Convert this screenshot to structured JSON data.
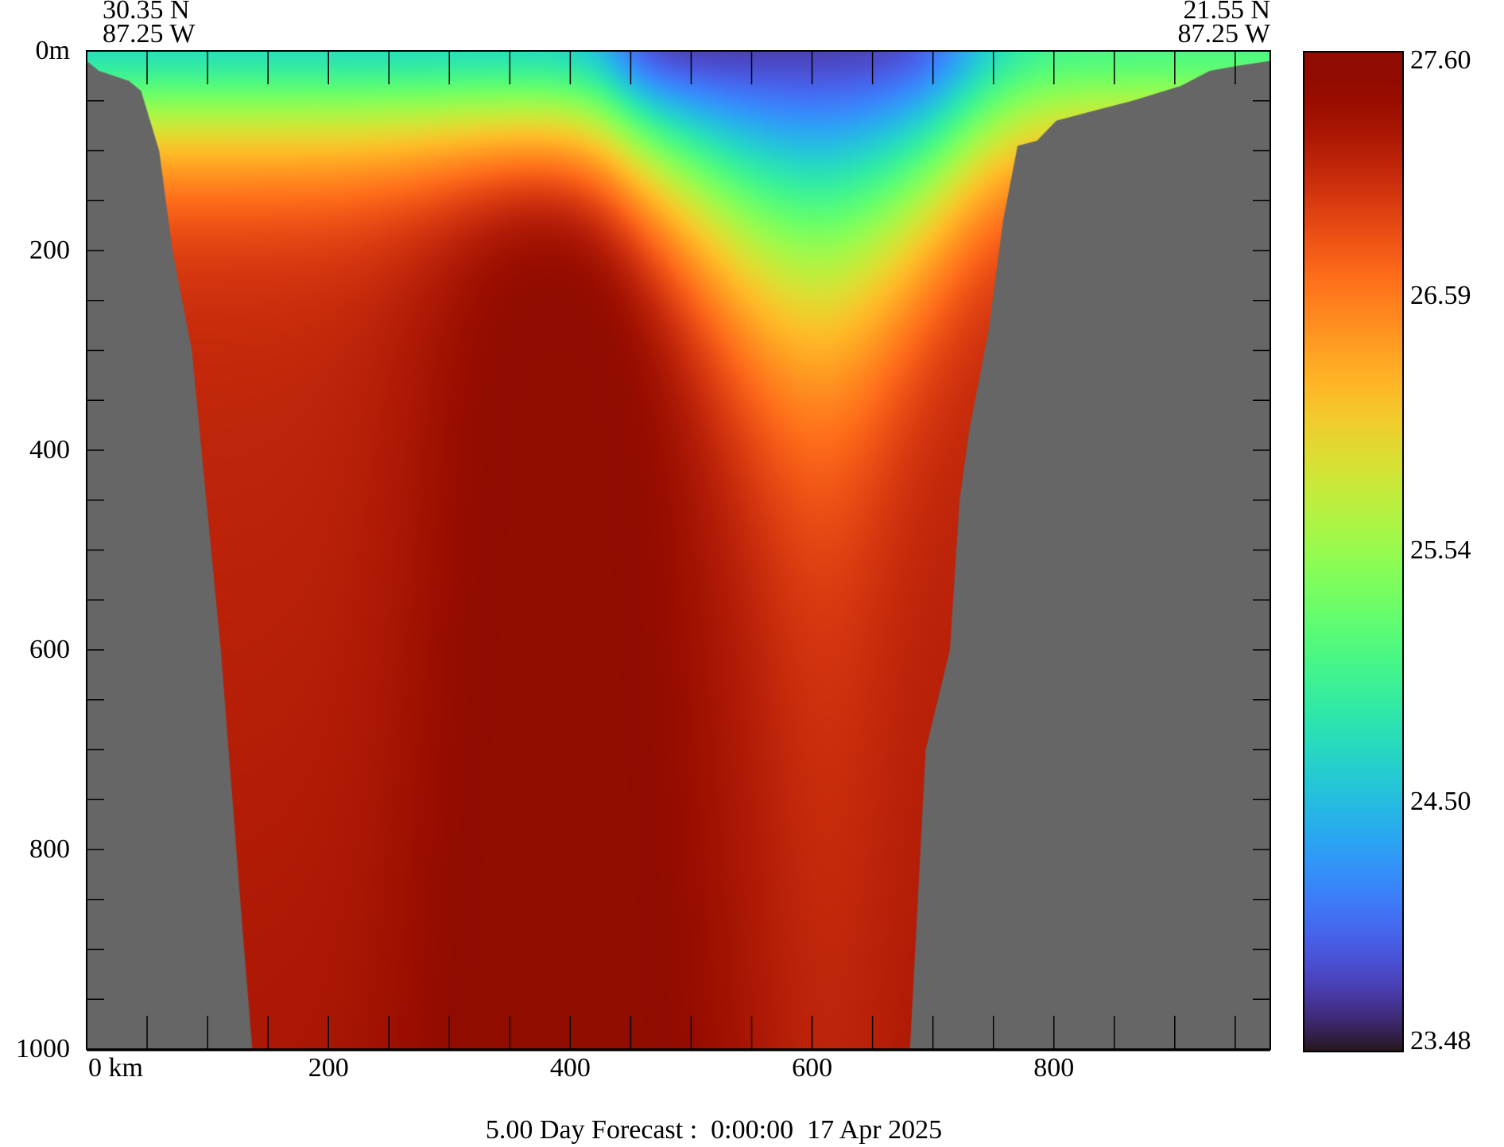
{
  "chart_data": {
    "type": "heatmap",
    "title": "5.00 Day Forecast :  0:00:00  17 Apr 2025",
    "start_point": {
      "lat": "30.35 N",
      "lon": "87.25 W"
    },
    "end_point": {
      "lat": "21.55 N",
      "lon": "87.25 W"
    },
    "xlabel": "km",
    "ylabel": "m",
    "xlim": [
      0,
      979
    ],
    "ylim": [
      1000,
      0
    ],
    "x_ticks": [
      {
        "value": 0,
        "label": "0 km"
      },
      {
        "value": 200,
        "label": "200"
      },
      {
        "value": 400,
        "label": "400"
      },
      {
        "value": 600,
        "label": "600"
      },
      {
        "value": 800,
        "label": "800"
      }
    ],
    "y_ticks": [
      {
        "value": 0,
        "label": "0m"
      },
      {
        "value": 200,
        "label": "200"
      },
      {
        "value": 400,
        "label": "400"
      },
      {
        "value": 600,
        "label": "600"
      },
      {
        "value": 800,
        "label": "800"
      },
      {
        "value": 1000,
        "label": "1000"
      }
    ],
    "minor_tick_step_x": 50,
    "minor_tick_step_y": 50,
    "colorbar": {
      "min": 23.48,
      "max": 27.6,
      "colormap": "turbo",
      "labels": [
        "27.60",
        "26.59",
        "25.54",
        "24.50",
        "23.48"
      ],
      "label_values": [
        27.6,
        26.59,
        25.54,
        24.5,
        23.48
      ]
    },
    "land_color": "#666666",
    "seafloor_left": {
      "km": [
        0,
        10,
        35,
        45,
        60,
        71,
        87,
        99,
        111,
        127,
        137
      ],
      "depth": [
        10,
        20,
        30,
        40,
        100,
        200,
        300,
        450,
        600,
        850,
        1000
      ]
    },
    "seafloor_right": {
      "km": [
        681,
        694,
        714,
        722,
        730,
        746,
        758,
        770,
        786,
        802,
        833,
        865,
        905,
        929,
        952,
        979
      ],
      "depth": [
        1000,
        700,
        600,
        450,
        380,
        280,
        170,
        95,
        90,
        70,
        60,
        50,
        35,
        20,
        15,
        10
      ]
    },
    "field_description_values": {
      "surface_temp_north": 24.7,
      "surface_temp_central": 23.8,
      "deep_core_km": 390,
      "deep_core_temp": 27.6
    }
  }
}
